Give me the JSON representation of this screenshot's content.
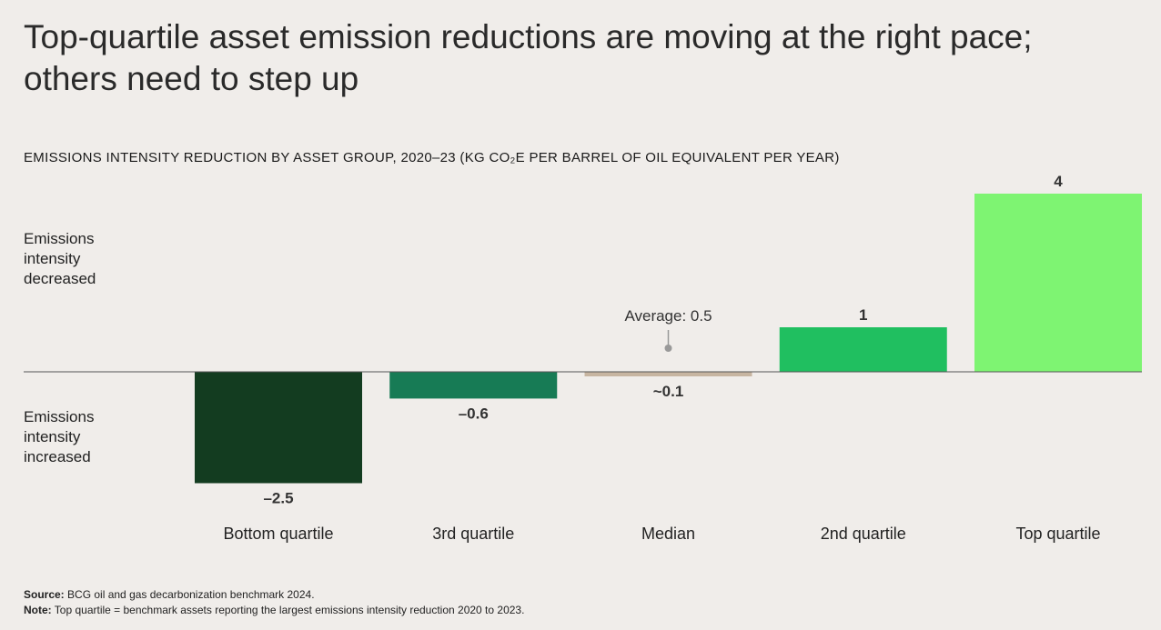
{
  "title": "Top-quartile asset emission reductions are moving at the right pace; others need to step up",
  "chart_data": {
    "type": "bar",
    "title": "EMISSIONS INTENSITY REDUCTION BY ASSET GROUP, 2020–23 (KG CO₂E PER BARREL OF OIL EQUIVALENT PER YEAR)",
    "categories": [
      "Bottom quartile",
      "3rd quartile",
      "Median",
      "2nd quartile",
      "Top quartile"
    ],
    "values": [
      -2.5,
      -0.6,
      -0.1,
      1,
      4
    ],
    "value_labels": [
      "–2.5",
      "–0.6",
      "~0.1",
      "1",
      "4"
    ],
    "colors": [
      "#133c20",
      "#177b55",
      "#c7b5a1",
      "#20bf60",
      "#7ef472"
    ],
    "annotation": "Average: 0.5",
    "ylabel_positive": "Emissions intensity decreased",
    "ylabel_negative": "Emissions intensity increased",
    "grid": false
  },
  "footer": {
    "source_label": "Source:",
    "source": "BCG oil and gas decarbonization benchmark 2024.",
    "note_label": "Note:",
    "note": "Top quartile = benchmark assets reporting the largest emissions intensity reduction 2020 to 2023."
  }
}
